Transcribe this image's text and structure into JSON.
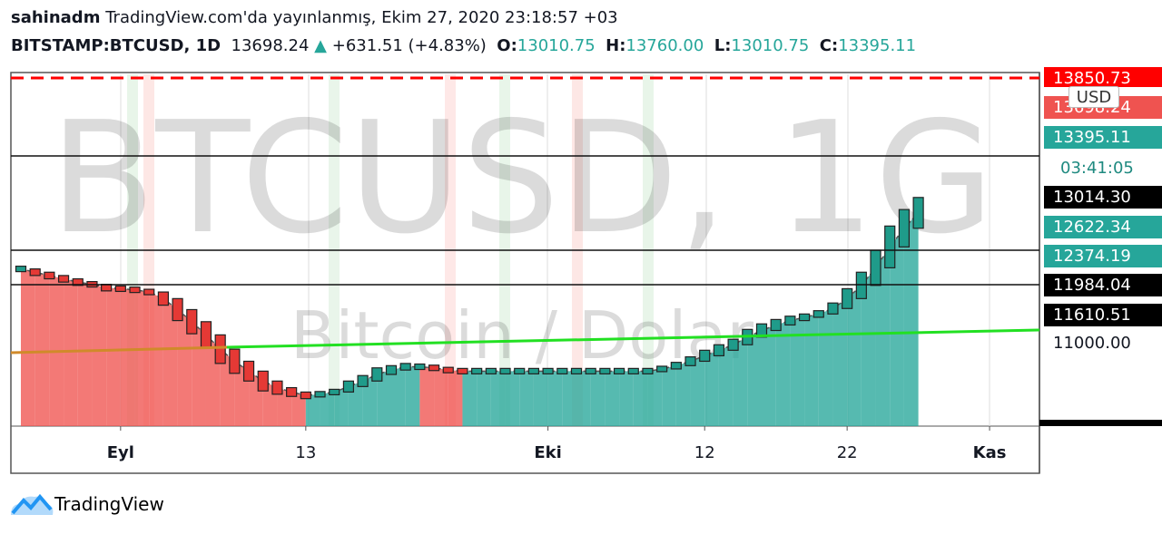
{
  "header": {
    "author": "sahinadm",
    "published": "TradingView.com'da yayınlanmış, Ekim 27, 2020 23:18:57 +03",
    "symbol": "BITSTAMP:BTCUSD, 1D",
    "last": "13698.24",
    "arrow": "▲",
    "change": "+631.51 (+4.83%)",
    "ohlc": [
      {
        "key": "O:",
        "value": "13010.75"
      },
      {
        "key": "H:",
        "value": "13760.00"
      },
      {
        "key": "L:",
        "value": "13010.75"
      },
      {
        "key": "C:",
        "value": "13395.11"
      }
    ]
  },
  "watermark": {
    "symbol": "BTCUSD, 1G",
    "name": "Bitcoin / Dolar"
  },
  "price_labels": [
    "13850.73",
    "13698.24",
    "USD",
    "13395.11",
    "03:41:05",
    "13014.30",
    "12622.34",
    "12374.19",
    "11984.04",
    "11610.51",
    "11000.00"
  ],
  "chart_data": {
    "type": "area",
    "x": [
      -7,
      -6,
      -5,
      -4,
      -3,
      -2,
      -1,
      0,
      1,
      2,
      3,
      4,
      5,
      6,
      7,
      8,
      9,
      10,
      11,
      12,
      13,
      14,
      15,
      16,
      17,
      18,
      19,
      20,
      21,
      22,
      23,
      24,
      25,
      26,
      27,
      28,
      29,
      30,
      31,
      32,
      33,
      34,
      35,
      36,
      37,
      38,
      39,
      40,
      41,
      42,
      43,
      44,
      45,
      46,
      47,
      48,
      49,
      50,
      51,
      52,
      53,
      54,
      55,
      56
    ],
    "series": [
      {
        "name": "BTCUSD",
        "color": "#26a69a",
        "down_color": "#ef5350",
        "values": [
          12130,
          12100,
          12070,
          12040,
          12010,
          11990,
          11960,
          11950,
          11940,
          11920,
          11860,
          11760,
          11650,
          11530,
          11400,
          11290,
          11200,
          11110,
          11050,
          11010,
          10980,
          10990,
          11010,
          11060,
          11110,
          11170,
          11210,
          11240,
          11240,
          11230,
          11210,
          11200,
          11200,
          11200,
          11200,
          11200,
          11200,
          11200,
          11200,
          11200,
          11200,
          11200,
          11200,
          11200,
          11200,
          11220,
          11250,
          11290,
          11340,
          11390,
          11440,
          11510,
          11570,
          11620,
          11660,
          11690,
          11720,
          11770,
          11860,
          11980,
          12140,
          12330,
          12500,
          12640
        ]
      }
    ],
    "xlim": [
      -7.7,
      64.5
    ],
    "ylim": [
      10700,
      13900
    ],
    "xticks": [
      {
        "value": 0,
        "label": "Eyl"
      },
      13,
      {
        "value": 30,
        "label": "Eki"
      },
      {
        "value": 41,
        "label": "12"
      },
      {
        "value": 51,
        "label": "22"
      },
      {
        "value": 61,
        "label": "Kas"
      }
    ]
  },
  "footer": {
    "brand": "TradingView"
  }
}
